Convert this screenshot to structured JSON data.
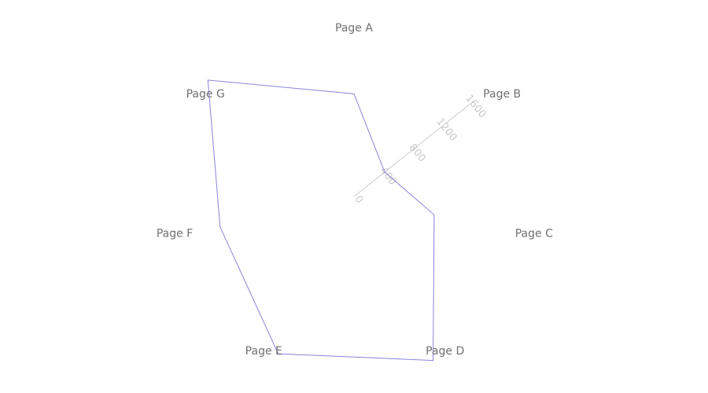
{
  "chart_data": {
    "type": "radar",
    "categories": [
      "Page A",
      "Page B",
      "Page C",
      "Page D",
      "Page E",
      "Page F",
      "Page G"
    ],
    "series": [
      {
        "values": [
          1100,
          420,
          880,
          1950,
          1870,
          1470,
          2000
        ]
      }
    ],
    "radial_axis": {
      "ticks": [
        "0",
        "400",
        "800",
        "1200",
        "1600"
      ],
      "range": [
        0,
        1600
      ]
    },
    "grid": false,
    "legend": "none",
    "colors": {
      "series_stroke": "#8884d8",
      "axis_line": "#cccccc",
      "category_text": "#707070",
      "tick_text": "#c8c8c8"
    }
  }
}
